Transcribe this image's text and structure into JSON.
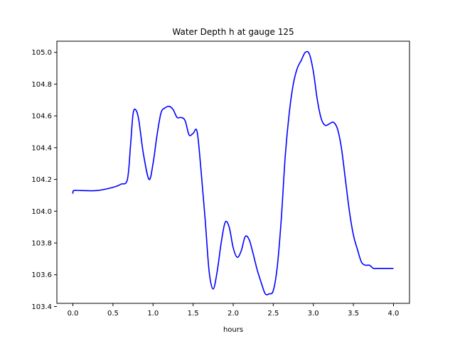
{
  "chart_data": {
    "type": "line",
    "title": "Water Depth h at gauge 125",
    "xlabel": "hours",
    "ylabel": "",
    "xlim": [
      -0.2,
      4.2
    ],
    "ylim": [
      103.42,
      105.07
    ],
    "grid": false,
    "xticks": [
      "0.0",
      "0.5",
      "1.0",
      "1.5",
      "2.0",
      "2.5",
      "3.0",
      "3.5",
      "4.0"
    ],
    "yticks": [
      "103.4",
      "103.6",
      "103.8",
      "104.0",
      "104.2",
      "104.4",
      "104.6",
      "104.8",
      "105.0"
    ],
    "series": [
      {
        "color": "#0000ff",
        "x": [
          0.0,
          0.01,
          0.1,
          0.3,
          0.5,
          0.6,
          0.68,
          0.72,
          0.75,
          0.78,
          0.82,
          0.88,
          0.95,
          1.0,
          1.05,
          1.1,
          1.15,
          1.2,
          1.25,
          1.3,
          1.35,
          1.4,
          1.45,
          1.5,
          1.55,
          1.6,
          1.65,
          1.7,
          1.75,
          1.8,
          1.85,
          1.9,
          1.95,
          2.0,
          2.05,
          2.1,
          2.15,
          2.2,
          2.25,
          2.3,
          2.35,
          2.4,
          2.45,
          2.5,
          2.55,
          2.6,
          2.65,
          2.7,
          2.75,
          2.8,
          2.85,
          2.9,
          2.95,
          3.0,
          3.05,
          3.1,
          3.15,
          3.2,
          3.25,
          3.3,
          3.35,
          3.4,
          3.45,
          3.5,
          3.55,
          3.6,
          3.65,
          3.7,
          3.75,
          3.8,
          3.85,
          3.9,
          3.95,
          4.0
        ],
        "y": [
          104.11,
          104.13,
          104.13,
          104.13,
          104.15,
          104.17,
          104.2,
          104.42,
          104.61,
          104.64,
          104.58,
          104.36,
          104.2,
          104.3,
          104.48,
          104.62,
          104.65,
          104.66,
          104.64,
          104.59,
          104.59,
          104.57,
          104.48,
          104.49,
          104.5,
          104.25,
          103.95,
          103.62,
          103.51,
          103.62,
          103.8,
          103.93,
          103.9,
          103.77,
          103.71,
          103.75,
          103.84,
          103.82,
          103.73,
          103.63,
          103.55,
          103.48,
          103.48,
          103.5,
          103.65,
          103.95,
          104.35,
          104.62,
          104.8,
          104.9,
          104.95,
          105.0,
          104.99,
          104.88,
          104.7,
          104.58,
          104.54,
          104.55,
          104.56,
          104.52,
          104.4,
          104.2,
          104.0,
          103.85,
          103.76,
          103.68,
          103.66,
          103.66,
          103.64,
          103.64,
          103.64,
          103.64,
          103.64,
          103.64
        ]
      }
    ]
  }
}
